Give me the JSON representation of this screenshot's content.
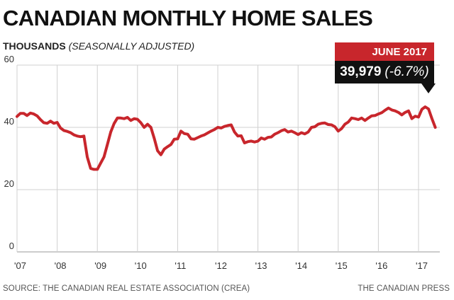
{
  "header": {
    "title": "CANADIAN MONTHLY HOME SALES",
    "subtitle_main": "THOUSANDS",
    "subtitle_note": "(SEASONALLY ADJUSTED)"
  },
  "callout": {
    "date_label": "JUNE 2017",
    "value_text": "39,979",
    "change_text": "(-6.7%)"
  },
  "footer": {
    "source": "SOURCE: THE CANADIAN REAL ESTATE ASSOCIATION (CREA)",
    "credit": "THE CANADIAN PRESS"
  },
  "colors": {
    "line": "#c8262c",
    "callout_head": "#c8262c",
    "callout_body": "#111111",
    "grid": "#d0d0d0",
    "axis_text": "#333333"
  },
  "chart_data": {
    "type": "line",
    "title": "CANADIAN MONTHLY HOME SALES",
    "ylabel": "THOUSANDS (SEASONALLY ADJUSTED)",
    "xlabel": "",
    "ylim": [
      0,
      60
    ],
    "yticks": [
      0,
      20,
      40,
      60
    ],
    "xticks": [
      "'07",
      "'08",
      "'09",
      "'10",
      "'11",
      "'12",
      "'13",
      "'14",
      "'15",
      "'16",
      "'17"
    ],
    "grid": true,
    "x_start": "2007-01",
    "x_end": "2017-06",
    "series": [
      {
        "values": [
          43.5,
          44.5,
          44.5,
          43.8,
          44.6,
          44.3,
          43.7,
          42.5,
          41.5,
          41.3,
          42.0,
          41.3,
          41.6,
          39.8,
          39.0,
          38.7,
          38.3,
          37.6,
          37.2,
          37.0,
          37.2,
          30.5,
          26.8,
          26.5,
          26.5,
          28.5,
          30.5,
          34.5,
          38.5,
          41.2,
          43.0,
          43.0,
          42.8,
          43.2,
          42.2,
          42.8,
          42.6,
          41.5,
          40.0,
          41.0,
          40.0,
          36.5,
          32.5,
          31.2,
          33.0,
          33.8,
          34.5,
          36.2,
          36.3,
          38.8,
          38.0,
          37.8,
          36.3,
          36.2,
          36.7,
          37.2,
          37.6,
          38.2,
          38.8,
          39.3,
          40.0,
          39.8,
          40.3,
          40.6,
          40.8,
          38.5,
          37.2,
          37.3,
          35.0,
          35.4,
          35.6,
          35.3,
          35.6,
          36.6,
          36.2,
          36.8,
          36.9,
          37.8,
          38.3,
          38.9,
          39.3,
          38.5,
          38.8,
          38.3,
          37.7,
          38.3,
          37.9,
          38.5,
          40.0,
          40.2,
          41.0,
          41.3,
          41.4,
          40.9,
          40.8,
          40.2,
          38.8,
          39.6,
          41.0,
          41.7,
          43.0,
          42.8,
          42.5,
          43.0,
          42.2,
          43.0,
          43.7,
          43.8,
          44.3,
          44.7,
          45.5,
          46.2,
          45.6,
          45.3,
          44.8,
          44.0,
          44.8,
          45.3,
          42.8,
          43.6,
          43.3,
          45.8,
          46.6,
          45.9,
          42.8,
          40.0
        ]
      }
    ]
  }
}
